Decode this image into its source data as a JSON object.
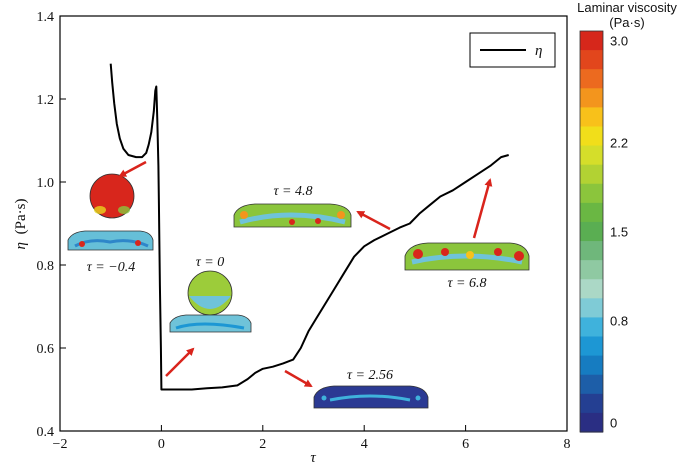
{
  "chart_data": {
    "type": "line",
    "xlabel": "τ",
    "ylabel_symbol": "η",
    "ylabel_unit": "(Pa·s)",
    "xlim": [
      -2,
      8
    ],
    "ylim": [
      0.4,
      1.4
    ],
    "xticks": [
      "−2",
      "0",
      "2",
      "4",
      "6",
      "8"
    ],
    "yticks": [
      "0.4",
      "0.6",
      "0.8",
      "1.0",
      "1.2",
      "1.4"
    ],
    "legend": {
      "label": "η",
      "position": "top-right"
    },
    "series": [
      {
        "name": "η",
        "color": "#000000",
        "points": [
          [
            -1.0,
            1.285
          ],
          [
            -0.97,
            1.24
          ],
          [
            -0.93,
            1.19
          ],
          [
            -0.88,
            1.14
          ],
          [
            -0.82,
            1.105
          ],
          [
            -0.75,
            1.08
          ],
          [
            -0.65,
            1.065
          ],
          [
            -0.5,
            1.06
          ],
          [
            -0.38,
            1.06
          ],
          [
            -0.3,
            1.07
          ],
          [
            -0.25,
            1.09
          ],
          [
            -0.2,
            1.12
          ],
          [
            -0.15,
            1.17
          ],
          [
            -0.12,
            1.22
          ],
          [
            -0.1,
            1.23
          ],
          [
            -0.08,
            1.15
          ],
          [
            -0.06,
            1.04
          ],
          [
            -0.05,
            0.95
          ],
          [
            -0.03,
            0.75
          ],
          [
            -0.01,
            0.6
          ],
          [
            0.0,
            0.5
          ],
          [
            0.3,
            0.5
          ],
          [
            0.6,
            0.5
          ],
          [
            0.9,
            0.503
          ],
          [
            1.2,
            0.505
          ],
          [
            1.5,
            0.51
          ],
          [
            1.7,
            0.525
          ],
          [
            1.85,
            0.54
          ],
          [
            2.0,
            0.55
          ],
          [
            2.2,
            0.555
          ],
          [
            2.4,
            0.563
          ],
          [
            2.6,
            0.572
          ],
          [
            2.75,
            0.6
          ],
          [
            2.9,
            0.64
          ],
          [
            3.05,
            0.67
          ],
          [
            3.2,
            0.7
          ],
          [
            3.4,
            0.74
          ],
          [
            3.6,
            0.78
          ],
          [
            3.8,
            0.82
          ],
          [
            4.0,
            0.845
          ],
          [
            4.2,
            0.86
          ],
          [
            4.45,
            0.875
          ],
          [
            4.7,
            0.89
          ],
          [
            4.9,
            0.9
          ],
          [
            5.1,
            0.925
          ],
          [
            5.3,
            0.945
          ],
          [
            5.5,
            0.965
          ],
          [
            5.75,
            0.98
          ],
          [
            6.0,
            1.0
          ],
          [
            6.25,
            1.02
          ],
          [
            6.5,
            1.04
          ],
          [
            6.7,
            1.06
          ],
          [
            6.85,
            1.065
          ]
        ]
      }
    ],
    "annotations": [
      {
        "label": "τ = −0.4"
      },
      {
        "label": "τ = 0"
      },
      {
        "label": "τ = 4.8"
      },
      {
        "label": "τ = 2.56"
      },
      {
        "label": "τ = 6.8"
      }
    ],
    "colorbar": {
      "title_line1": "Laminar viscosity",
      "title_line2": "(Pa·s)",
      "ticks": [
        "3.0",
        "2.2",
        "1.5",
        "0.8",
        "0"
      ],
      "colors": [
        "#d6271b",
        "#e2461c",
        "#ec6a1f",
        "#f3951d",
        "#f8c11a",
        "#f1de1a",
        "#d5de2a",
        "#b2d233",
        "#8bc53c",
        "#6ab743",
        "#5aae52",
        "#6fb77b",
        "#8fc9a2",
        "#abd8c6",
        "#7fcbd6",
        "#3fb2dc",
        "#1d97d4",
        "#167cc1",
        "#1d5ea8",
        "#243f92",
        "#2a2e83"
      ]
    }
  }
}
